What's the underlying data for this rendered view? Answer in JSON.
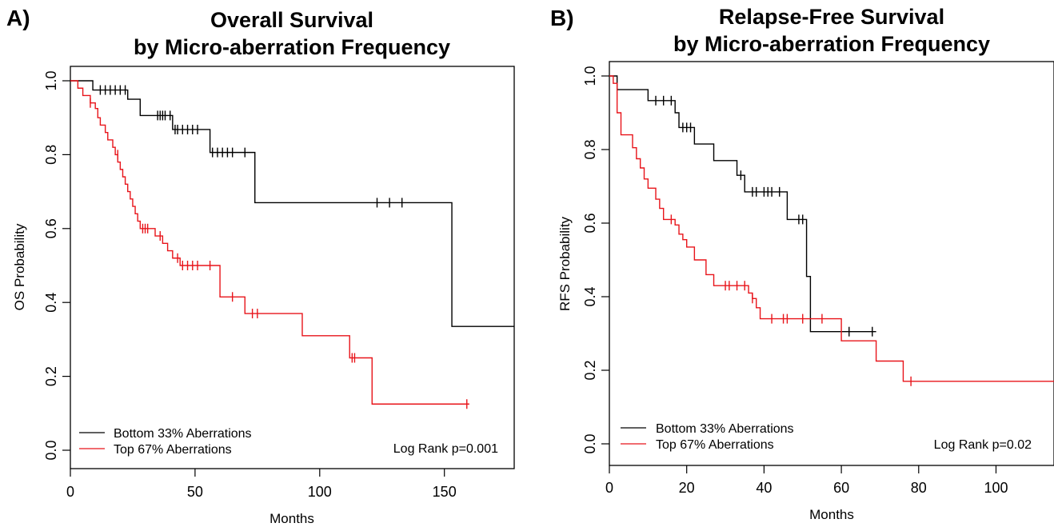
{
  "chart_data": [
    {
      "type": "line",
      "panel_label": "A)",
      "title": "Overall Survival",
      "subtitle": "by Micro-aberration Frequency",
      "xlabel": "Months",
      "ylabel": "OS Probability",
      "xlim": [
        0,
        178
      ],
      "ylim": [
        0,
        1.0
      ],
      "xticks": [
        0,
        50,
        100,
        150
      ],
      "yticks": [
        0.0,
        0.2,
        0.4,
        0.6,
        0.8,
        1.0
      ],
      "xtick_labels": [
        "0",
        "50",
        "100",
        "150"
      ],
      "ytick_labels": [
        "0.0",
        "0.2",
        "0.4",
        "0.6",
        "0.8",
        "1.0"
      ],
      "annotation": "Log Rank p=0.001",
      "legend_position": "bottom-left",
      "grid": false,
      "series": [
        {
          "name": "Bottom 33% Aberrations",
          "color": "#000000",
          "steps": [
            [
              0,
              1.0
            ],
            [
              9,
              0.975
            ],
            [
              23,
              0.95
            ],
            [
              28,
              0.906
            ],
            [
              39,
              0.906
            ],
            [
              41,
              0.868
            ],
            [
              56,
              0.806
            ],
            [
              74,
              0.806
            ],
            [
              74,
              0.67
            ],
            [
              153,
              0.67
            ],
            [
              153,
              0.335
            ],
            [
              178,
              0.335
            ]
          ],
          "censored": [
            [
              12,
              0.975
            ],
            [
              14,
              0.975
            ],
            [
              16,
              0.975
            ],
            [
              18,
              0.975
            ],
            [
              20,
              0.975
            ],
            [
              22,
              0.975
            ],
            [
              35,
              0.906
            ],
            [
              36,
              0.906
            ],
            [
              37,
              0.906
            ],
            [
              38,
              0.906
            ],
            [
              40,
              0.906
            ],
            [
              42,
              0.868
            ],
            [
              43,
              0.868
            ],
            [
              45,
              0.868
            ],
            [
              47,
              0.868
            ],
            [
              49,
              0.868
            ],
            [
              51,
              0.868
            ],
            [
              57,
              0.806
            ],
            [
              59,
              0.806
            ],
            [
              61,
              0.806
            ],
            [
              63,
              0.806
            ],
            [
              65,
              0.806
            ],
            [
              70,
              0.806
            ],
            [
              123,
              0.67
            ],
            [
              128,
              0.67
            ],
            [
              133,
              0.67
            ]
          ]
        },
        {
          "name": "Top 67% Aberrations",
          "color": "#e8141a",
          "steps": [
            [
              0,
              1.0
            ],
            [
              3,
              0.98
            ],
            [
              5,
              0.96
            ],
            [
              8,
              0.94
            ],
            [
              10,
              0.925
            ],
            [
              11,
              0.9
            ],
            [
              12,
              0.88
            ],
            [
              14,
              0.86
            ],
            [
              15,
              0.84
            ],
            [
              17,
              0.82
            ],
            [
              18,
              0.8
            ],
            [
              19,
              0.78
            ],
            [
              20,
              0.76
            ],
            [
              21,
              0.74
            ],
            [
              22,
              0.72
            ],
            [
              23,
              0.7
            ],
            [
              24,
              0.68
            ],
            [
              25,
              0.66
            ],
            [
              26,
              0.64
            ],
            [
              27,
              0.62
            ],
            [
              28,
              0.6
            ],
            [
              34,
              0.58
            ],
            [
              37,
              0.56
            ],
            [
              39,
              0.54
            ],
            [
              41,
              0.52
            ],
            [
              44,
              0.5
            ],
            [
              60,
              0.5
            ],
            [
              60,
              0.415
            ],
            [
              70,
              0.415
            ],
            [
              70,
              0.37
            ],
            [
              93,
              0.37
            ],
            [
              93,
              0.31
            ],
            [
              112,
              0.31
            ],
            [
              112,
              0.25
            ],
            [
              121,
              0.25
            ],
            [
              121,
              0.125
            ],
            [
              160,
              0.125
            ]
          ],
          "censored": [
            [
              8,
              0.94
            ],
            [
              19,
              0.8
            ],
            [
              29,
              0.6
            ],
            [
              30,
              0.6
            ],
            [
              31,
              0.6
            ],
            [
              36,
              0.58
            ],
            [
              43,
              0.52
            ],
            [
              45,
              0.5
            ],
            [
              47,
              0.5
            ],
            [
              49,
              0.5
            ],
            [
              51,
              0.5
            ],
            [
              56,
              0.5
            ],
            [
              65,
              0.415
            ],
            [
              73,
              0.37
            ],
            [
              75,
              0.37
            ],
            [
              113,
              0.25
            ],
            [
              114,
              0.25
            ],
            [
              159,
              0.125
            ]
          ]
        }
      ]
    },
    {
      "type": "line",
      "panel_label": "B)",
      "title": "Relapse-Free Survival",
      "subtitle": "by Micro-aberration Frequency",
      "xlabel": "Months",
      "ylabel": "RFS Probability",
      "xlim": [
        0,
        115
      ],
      "ylim": [
        0,
        1.0
      ],
      "xticks": [
        0,
        20,
        40,
        60,
        80,
        100
      ],
      "yticks": [
        0.0,
        0.2,
        0.4,
        0.6,
        0.8,
        1.0
      ],
      "xtick_labels": [
        "0",
        "20",
        "40",
        "60",
        "80",
        "100"
      ],
      "ytick_labels": [
        "0.0",
        "0.2",
        "0.4",
        "0.6",
        "0.8",
        "1.0"
      ],
      "annotation": "Log Rank p=0.02",
      "legend_position": "bottom-left",
      "grid": false,
      "series": [
        {
          "name": "Bottom 33% Aberrations",
          "color": "#000000",
          "steps": [
            [
              0,
              1.0
            ],
            [
              2,
              0.963
            ],
            [
              10,
              0.933
            ],
            [
              17,
              0.9
            ],
            [
              18,
              0.86
            ],
            [
              22,
              0.815
            ],
            [
              27,
              0.77
            ],
            [
              33,
              0.73
            ],
            [
              35,
              0.685
            ],
            [
              46,
              0.61
            ],
            [
              50,
              0.61
            ],
            [
              51,
              0.455
            ],
            [
              52,
              0.305
            ],
            [
              69,
              0.305
            ]
          ],
          "censored": [
            [
              12,
              0.933
            ],
            [
              14,
              0.933
            ],
            [
              16,
              0.933
            ],
            [
              19,
              0.86
            ],
            [
              20,
              0.86
            ],
            [
              21,
              0.86
            ],
            [
              34,
              0.73
            ],
            [
              37,
              0.685
            ],
            [
              38,
              0.685
            ],
            [
              40,
              0.685
            ],
            [
              41,
              0.685
            ],
            [
              42,
              0.685
            ],
            [
              44,
              0.685
            ],
            [
              49,
              0.61
            ],
            [
              50,
              0.61
            ],
            [
              62,
              0.305
            ],
            [
              68,
              0.305
            ]
          ]
        },
        {
          "name": "Top 67% Aberrations",
          "color": "#e8141a",
          "steps": [
            [
              0,
              1.0
            ],
            [
              1,
              0.98
            ],
            [
              2,
              0.9
            ],
            [
              3,
              0.84
            ],
            [
              6,
              0.805
            ],
            [
              7,
              0.775
            ],
            [
              8,
              0.75
            ],
            [
              9,
              0.72
            ],
            [
              10,
              0.695
            ],
            [
              12,
              0.665
            ],
            [
              13,
              0.64
            ],
            [
              14,
              0.61
            ],
            [
              17,
              0.595
            ],
            [
              18,
              0.57
            ],
            [
              19,
              0.555
            ],
            [
              20,
              0.535
            ],
            [
              22,
              0.5
            ],
            [
              25,
              0.46
            ],
            [
              27,
              0.43
            ],
            [
              32,
              0.43
            ],
            [
              36,
              0.41
            ],
            [
              37,
              0.395
            ],
            [
              38,
              0.37
            ],
            [
              39,
              0.34
            ],
            [
              60,
              0.34
            ],
            [
              60,
              0.28
            ],
            [
              69,
              0.28
            ],
            [
              69,
              0.225
            ],
            [
              76,
              0.225
            ],
            [
              76,
              0.17
            ],
            [
              115,
              0.17
            ]
          ],
          "censored": [
            [
              16,
              0.61
            ],
            [
              30,
              0.43
            ],
            [
              31,
              0.43
            ],
            [
              33,
              0.43
            ],
            [
              35,
              0.43
            ],
            [
              37,
              0.395
            ],
            [
              42,
              0.34
            ],
            [
              45,
              0.34
            ],
            [
              46,
              0.34
            ],
            [
              50,
              0.34
            ],
            [
              55,
              0.34
            ],
            [
              78,
              0.17
            ]
          ]
        }
      ]
    }
  ]
}
